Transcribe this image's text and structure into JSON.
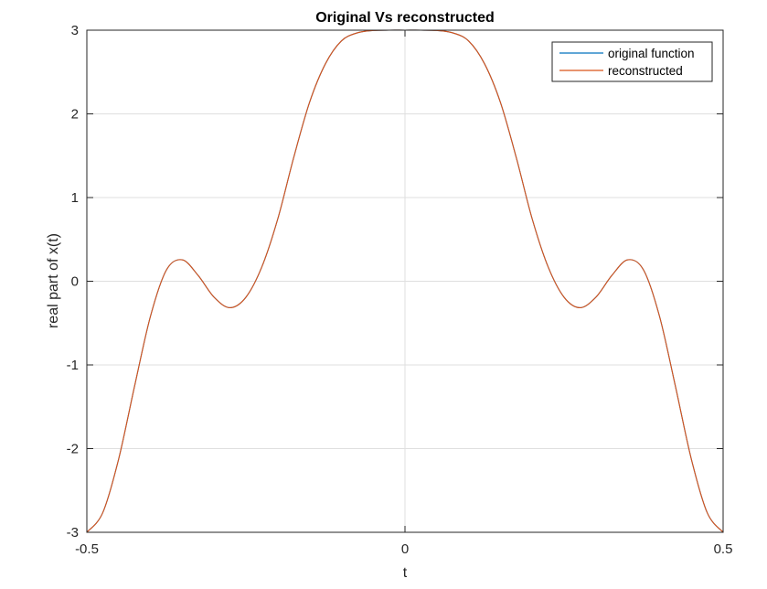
{
  "chart_data": {
    "type": "line",
    "title": "Original Vs reconstructed",
    "xlabel": "t",
    "ylabel": "real part of x(t)",
    "xlim": [
      -0.5,
      0.5
    ],
    "ylim": [
      -3,
      3
    ],
    "xticks": [
      -0.5,
      0,
      0.5
    ],
    "xtick_labels": [
      "-0.5",
      "0",
      "0.5"
    ],
    "yticks": [
      -3,
      -2,
      -1,
      0,
      1,
      2,
      3
    ],
    "ytick_labels": [
      "-3",
      "-2",
      "-1",
      "0",
      "1",
      "2",
      "3"
    ],
    "grid": true,
    "box": true,
    "legend_position": "top-right",
    "series": [
      {
        "name": "original function",
        "color": "#0072BD",
        "x": [
          -0.5,
          -0.475,
          -0.45,
          -0.425,
          -0.4,
          -0.375,
          -0.35,
          -0.325,
          -0.3,
          -0.275,
          -0.25,
          -0.225,
          -0.2,
          -0.175,
          -0.15,
          -0.125,
          -0.1,
          -0.075,
          -0.05,
          -0.025,
          0,
          0.025,
          0.05,
          0.075,
          0.1,
          0.125,
          0.15,
          0.175,
          0.2,
          0.225,
          0.25,
          0.275,
          0.3,
          0.325,
          0.35,
          0.375,
          0.4,
          0.425,
          0.45,
          0.475,
          0.5
        ],
        "y": [
          -3,
          -2.766,
          -2.124,
          -1.254,
          -0.418,
          0.134,
          0.256,
          0.068,
          -0.191,
          -0.316,
          -0.191,
          0.171,
          0.743,
          1.475,
          2.137,
          2.599,
          2.871,
          2.968,
          2.996,
          3.0,
          3.0,
          3.0,
          2.996,
          2.968,
          2.871,
          2.599,
          2.137,
          1.475,
          0.743,
          0.171,
          -0.191,
          -0.316,
          -0.191,
          0.068,
          0.256,
          0.134,
          -0.418,
          -1.254,
          -2.124,
          -2.766,
          -3
        ]
      },
      {
        "name": "reconstructed",
        "color": "#D95319",
        "x": [
          -0.5,
          -0.475,
          -0.45,
          -0.425,
          -0.4,
          -0.375,
          -0.35,
          -0.325,
          -0.3,
          -0.275,
          -0.25,
          -0.225,
          -0.2,
          -0.175,
          -0.15,
          -0.125,
          -0.1,
          -0.075,
          -0.05,
          -0.025,
          0,
          0.025,
          0.05,
          0.075,
          0.1,
          0.125,
          0.15,
          0.175,
          0.2,
          0.225,
          0.25,
          0.275,
          0.3,
          0.325,
          0.35,
          0.375,
          0.4,
          0.425,
          0.45,
          0.475,
          0.5
        ],
        "y": [
          -3,
          -2.766,
          -2.124,
          -1.254,
          -0.418,
          0.134,
          0.256,
          0.068,
          -0.191,
          -0.316,
          -0.191,
          0.171,
          0.743,
          1.475,
          2.137,
          2.599,
          2.871,
          2.968,
          2.996,
          3.0,
          3.0,
          3.0,
          2.996,
          2.968,
          2.871,
          2.599,
          2.137,
          1.475,
          0.743,
          0.171,
          -0.191,
          -0.316,
          -0.191,
          0.068,
          0.256,
          0.134,
          -0.418,
          -1.254,
          -2.124,
          -2.766,
          -3
        ]
      }
    ]
  }
}
